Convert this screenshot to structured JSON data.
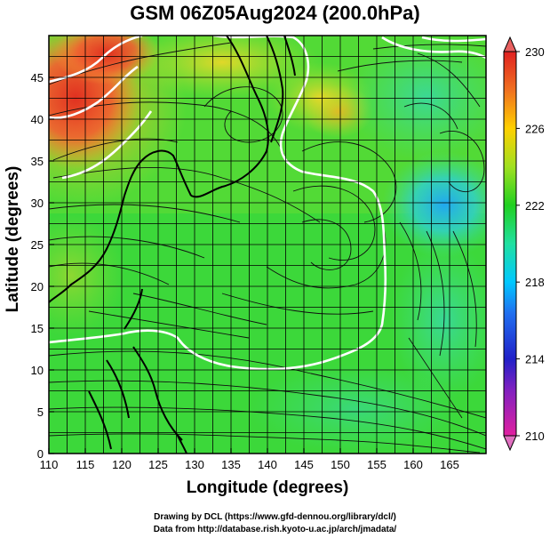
{
  "title": "GSM 06Z05Aug2024 (200.0hPa)",
  "xlabel": "Longitude (degrees)",
  "ylabel": "Latitude  (degrees)",
  "credits": [
    "Drawing by DCL (https://www.gfd-dennou.org/library/dcl/)",
    "Data from http://database.rish.kyoto-u.ac.jp/arch/jmadata/"
  ],
  "map_data": {
    "lon_range": [
      110,
      170
    ],
    "lat_range": [
      0,
      50
    ],
    "lon_ticks": [
      110,
      115,
      120,
      125,
      130,
      135,
      140,
      145,
      150,
      155,
      160,
      165
    ],
    "lat_ticks": [
      0,
      5,
      10,
      15,
      20,
      25,
      30,
      35,
      40,
      45
    ],
    "grid_step_deg": 2.5,
    "field": "200hPa geopotential/temperature shading with wind streamlines",
    "colorbar": {
      "min": 210,
      "max": 230,
      "ticks": [
        210,
        214,
        218,
        222,
        226,
        230
      ],
      "colors": [
        "#e020a0",
        "#2020c8",
        "#00c8ff",
        "#20d020",
        "#ffd000",
        "#e02020"
      ]
    }
  }
}
